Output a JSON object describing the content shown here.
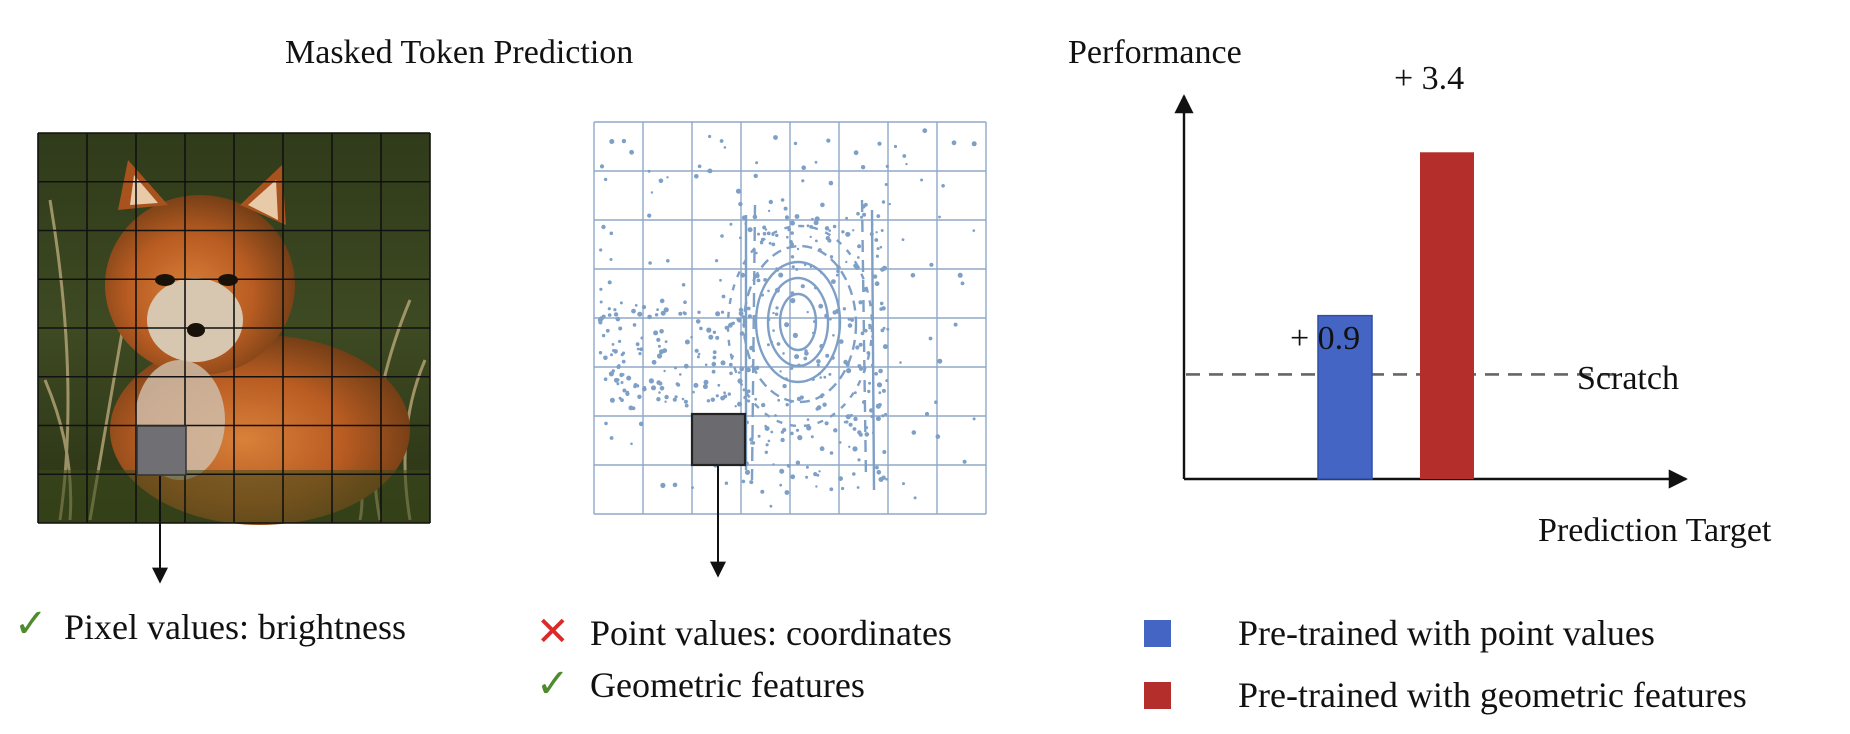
{
  "title": "Masked Token Prediction",
  "image_panel": {
    "caption": "Pixel values: brightness",
    "check_icon": "check-icon",
    "grid": "8x8",
    "masked_cell": [
      2,
      6
    ]
  },
  "point_panel": {
    "captions": [
      {
        "mark": "cross-icon",
        "text": "Point values: coordinates"
      },
      {
        "mark": "check-icon",
        "text": "Geometric features"
      }
    ],
    "grid": "8x8",
    "masked_cell": [
      2,
      6
    ]
  },
  "chart_data": {
    "type": "bar",
    "ylabel": "Performance",
    "xlabel": "Prediction Target",
    "baseline": {
      "label": "Scratch",
      "value": 0
    },
    "ylim": [
      -1.6,
      4.2
    ],
    "series": [
      {
        "name": "Pre-trained with point values",
        "value": 0.9,
        "annotation": "+ 0.9",
        "color": "#4465c4"
      },
      {
        "name": "Pre-trained with geometric features",
        "value": 3.4,
        "annotation": "+ 3.4",
        "color": "#b42f2b"
      }
    ]
  },
  "legend": [
    {
      "label": "Pre-trained with point values",
      "color": "#4465c4"
    },
    {
      "label": "Pre-trained with geometric features",
      "color": "#b42f2b"
    }
  ]
}
